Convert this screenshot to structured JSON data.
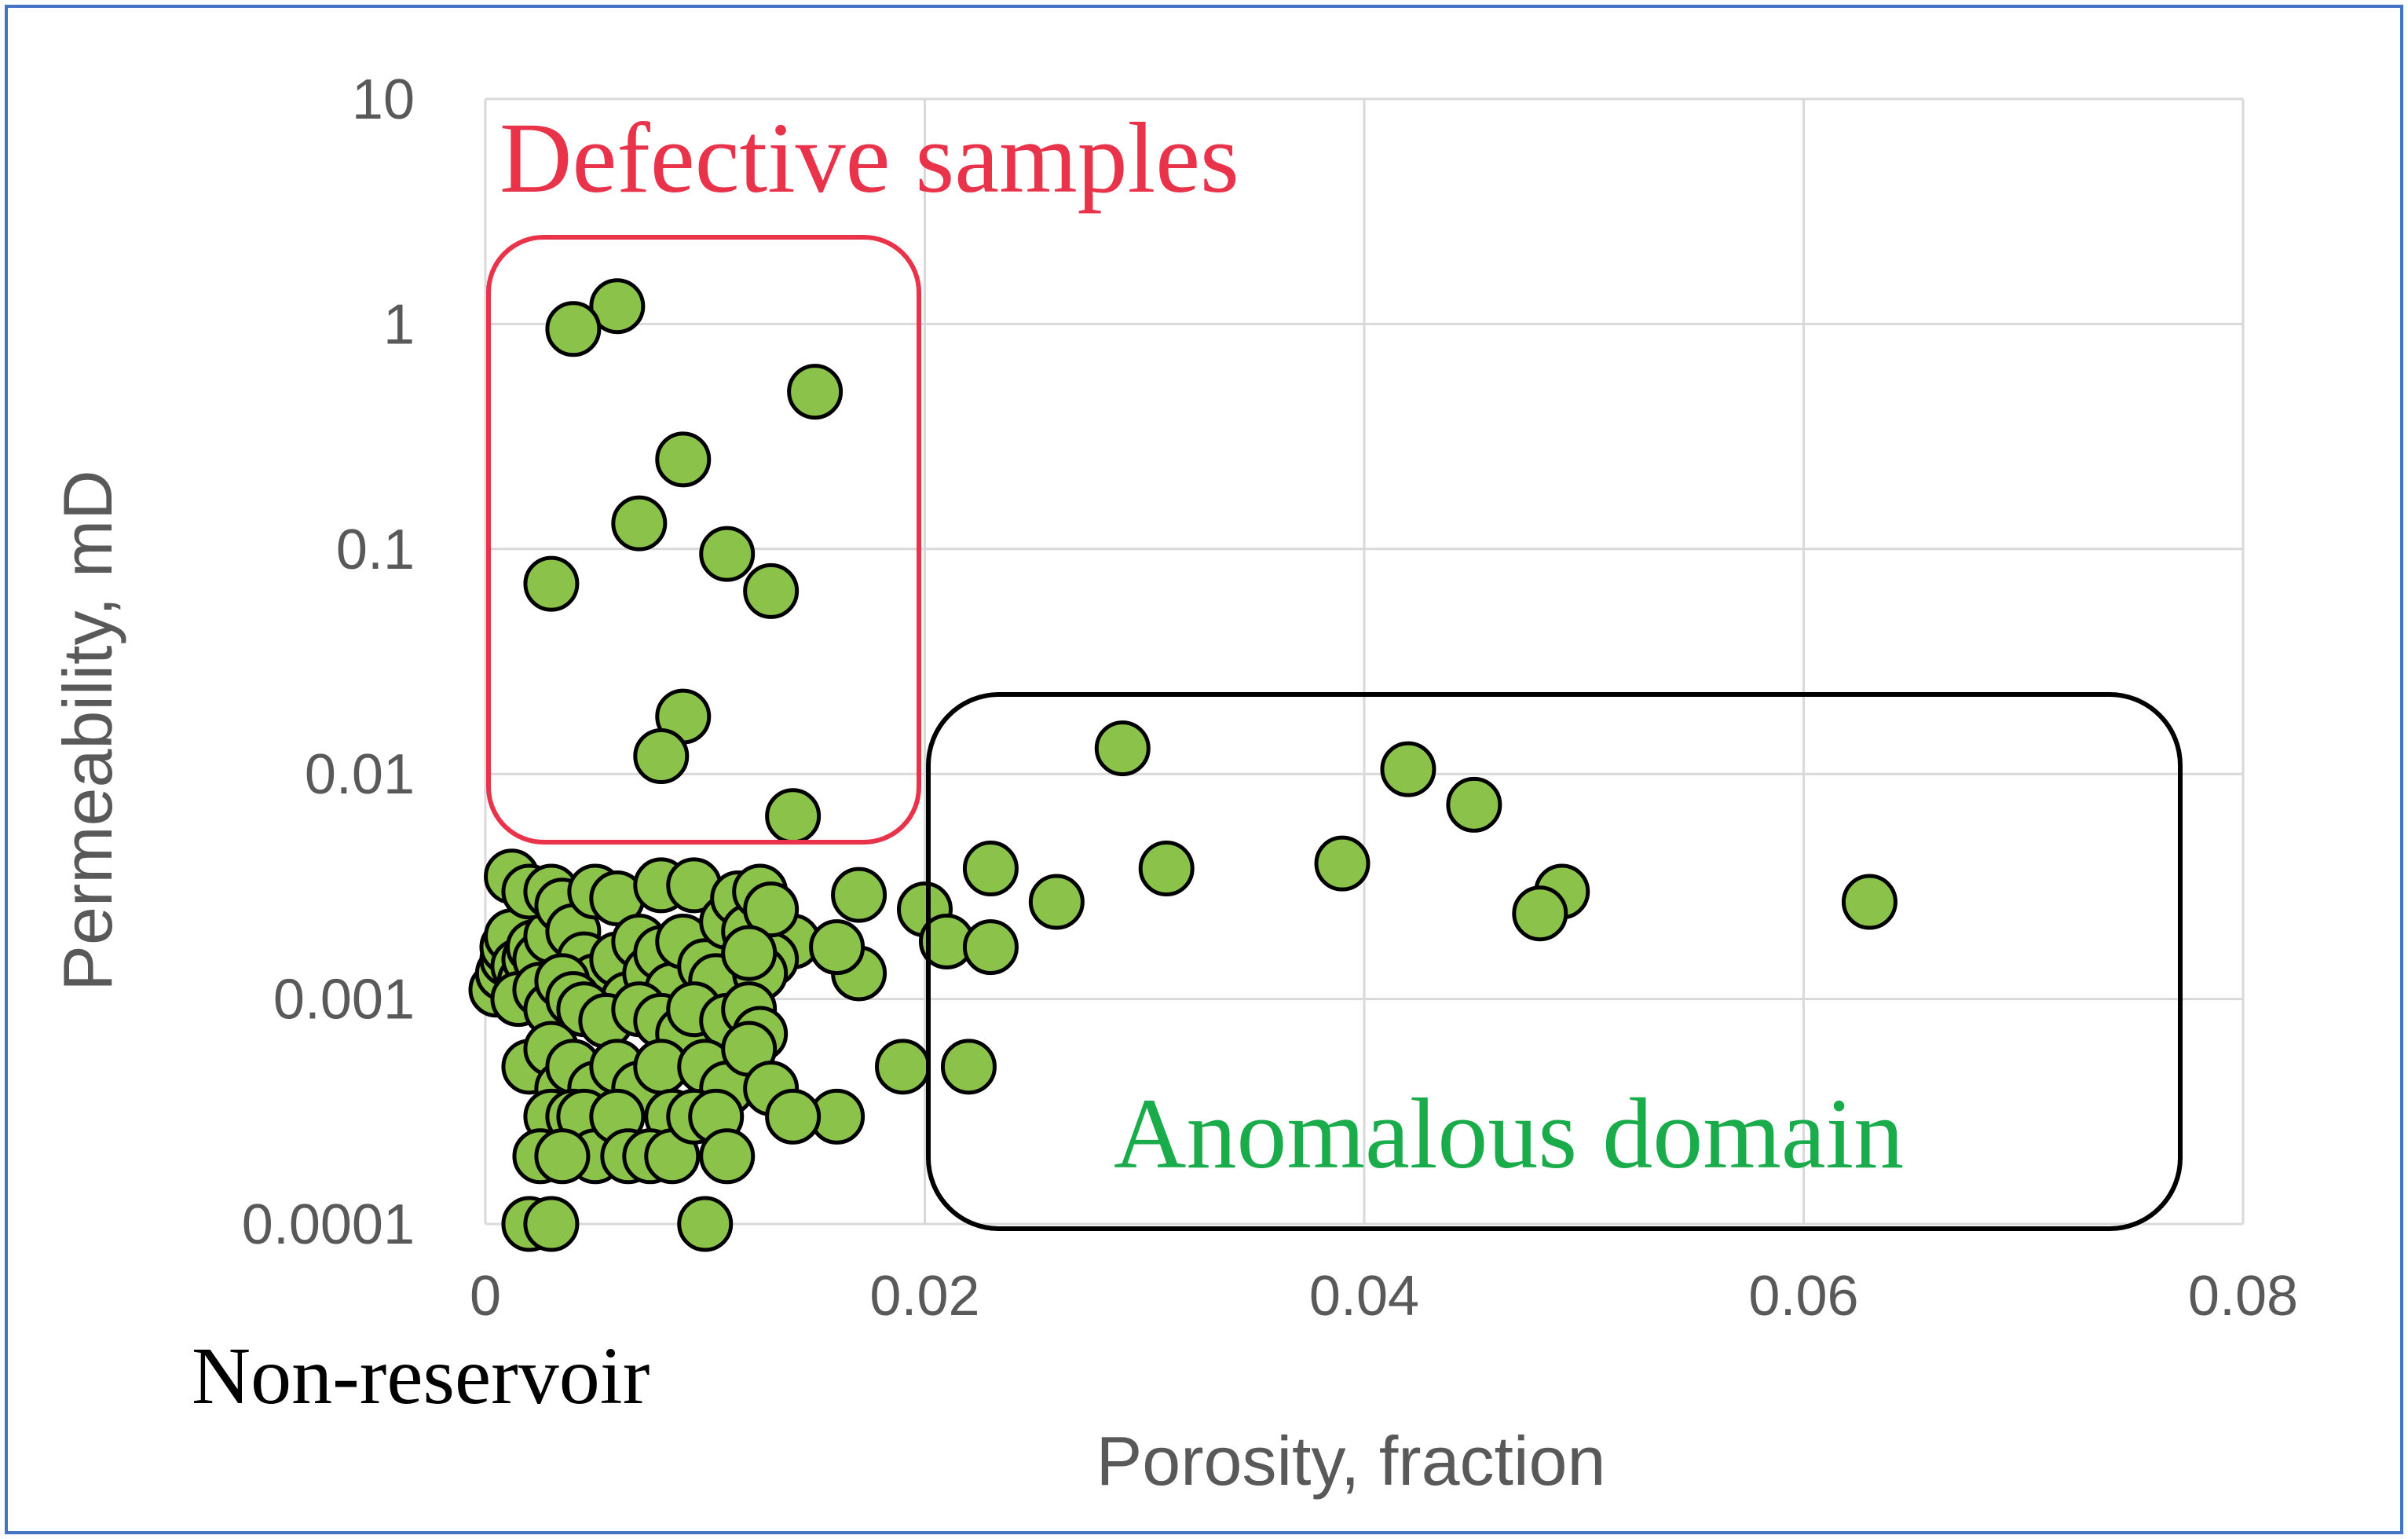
{
  "chart_data": {
    "type": "scatter",
    "xlabel": "Porosity, fraction",
    "ylabel": "Permeability, mD",
    "xlim": [
      0,
      0.08
    ],
    "ylim": [
      0.0001,
      10
    ],
    "yscale": "log",
    "x_ticks": [
      "0",
      "0.02",
      "0.04",
      "0.06",
      "0.08"
    ],
    "y_ticks": [
      "10",
      "1",
      "0.1",
      "0.01",
      "0.001",
      "0.0001"
    ],
    "grid": true,
    "marker_color": "#8bc34a",
    "annotations": {
      "defective": {
        "text": "Defective samples",
        "color": "#e8334a"
      },
      "anomalous": {
        "text": "Anomalous domain",
        "color": "#1aab4b"
      },
      "nonreservoir": {
        "text": "Non-reservoir",
        "color": "#000000"
      }
    },
    "points": [
      {
        "x": 0.006,
        "y": 1.2
      },
      {
        "x": 0.004,
        "y": 0.95
      },
      {
        "x": 0.015,
        "y": 0.5
      },
      {
        "x": 0.009,
        "y": 0.25
      },
      {
        "x": 0.007,
        "y": 0.13
      },
      {
        "x": 0.011,
        "y": 0.095
      },
      {
        "x": 0.003,
        "y": 0.07
      },
      {
        "x": 0.013,
        "y": 0.065
      },
      {
        "x": 0.009,
        "y": 0.018
      },
      {
        "x": 0.008,
        "y": 0.012
      },
      {
        "x": 0.014,
        "y": 0.0065
      },
      {
        "x": 0.029,
        "y": 0.013
      },
      {
        "x": 0.042,
        "y": 0.0105
      },
      {
        "x": 0.045,
        "y": 0.0073
      },
      {
        "x": 0.023,
        "y": 0.0038
      },
      {
        "x": 0.031,
        "y": 0.0038
      },
      {
        "x": 0.039,
        "y": 0.004
      },
      {
        "x": 0.049,
        "y": 0.003
      },
      {
        "x": 0.048,
        "y": 0.0024
      },
      {
        "x": 0.063,
        "y": 0.0027
      },
      {
        "x": 0.026,
        "y": 0.0027
      },
      {
        "x": 0.02,
        "y": 0.0025
      },
      {
        "x": 0.021,
        "y": 0.0018
      },
      {
        "x": 0.023,
        "y": 0.0017
      },
      {
        "x": 0.017,
        "y": 0.0029
      },
      {
        "x": 0.017,
        "y": 0.0013
      },
      {
        "x": 0.019,
        "y": 0.0005
      },
      {
        "x": 0.022,
        "y": 0.0005
      },
      {
        "x": 0.016,
        "y": 0.0003
      },
      {
        "x": 0.014,
        "y": 0.0018
      },
      {
        "x": 0.016,
        "y": 0.0017
      },
      {
        "x": 0.0005,
        "y": 0.0011
      },
      {
        "x": 0.0008,
        "y": 0.0013
      },
      {
        "x": 0.001,
        "y": 0.0015
      },
      {
        "x": 0.001,
        "y": 0.0017
      },
      {
        "x": 0.0012,
        "y": 0.0019
      },
      {
        "x": 0.0015,
        "y": 0.0014
      },
      {
        "x": 0.0018,
        "y": 0.0012
      },
      {
        "x": 0.002,
        "y": 0.0015
      },
      {
        "x": 0.0022,
        "y": 0.0017
      },
      {
        "x": 0.0015,
        "y": 0.001
      },
      {
        "x": 0.0025,
        "y": 0.0015
      },
      {
        "x": 0.003,
        "y": 0.0019
      },
      {
        "x": 0.0012,
        "y": 0.0035
      },
      {
        "x": 0.002,
        "y": 0.003
      },
      {
        "x": 0.003,
        "y": 0.003
      },
      {
        "x": 0.0035,
        "y": 0.0026
      },
      {
        "x": 0.004,
        "y": 0.002
      },
      {
        "x": 0.0045,
        "y": 0.0015
      },
      {
        "x": 0.005,
        "y": 0.0012
      },
      {
        "x": 0.005,
        "y": 0.003
      },
      {
        "x": 0.006,
        "y": 0.0028
      },
      {
        "x": 0.006,
        "y": 0.0015
      },
      {
        "x": 0.0065,
        "y": 0.001
      },
      {
        "x": 0.007,
        "y": 0.0018
      },
      {
        "x": 0.0075,
        "y": 0.0013
      },
      {
        "x": 0.008,
        "y": 0.0032
      },
      {
        "x": 0.008,
        "y": 0.0016
      },
      {
        "x": 0.0085,
        "y": 0.0011
      },
      {
        "x": 0.009,
        "y": 0.0018
      },
      {
        "x": 0.0095,
        "y": 0.0032
      },
      {
        "x": 0.01,
        "y": 0.0014
      },
      {
        "x": 0.0105,
        "y": 0.0012
      },
      {
        "x": 0.011,
        "y": 0.0022
      },
      {
        "x": 0.0115,
        "y": 0.0028
      },
      {
        "x": 0.012,
        "y": 0.002
      },
      {
        "x": 0.0125,
        "y": 0.003
      },
      {
        "x": 0.013,
        "y": 0.0015
      },
      {
        "x": 0.013,
        "y": 0.0025
      },
      {
        "x": 0.0125,
        "y": 0.0013
      },
      {
        "x": 0.012,
        "y": 0.0016
      },
      {
        "x": 0.0025,
        "y": 0.0011
      },
      {
        "x": 0.003,
        "y": 0.0009
      },
      {
        "x": 0.0035,
        "y": 0.0012
      },
      {
        "x": 0.004,
        "y": 0.001
      },
      {
        "x": 0.0045,
        "y": 0.0009
      },
      {
        "x": 0.0055,
        "y": 0.0008
      },
      {
        "x": 0.007,
        "y": 0.0009
      },
      {
        "x": 0.008,
        "y": 0.0008
      },
      {
        "x": 0.009,
        "y": 0.0007
      },
      {
        "x": 0.0095,
        "y": 0.0009
      },
      {
        "x": 0.011,
        "y": 0.0008
      },
      {
        "x": 0.012,
        "y": 0.0009
      },
      {
        "x": 0.0125,
        "y": 0.0007
      },
      {
        "x": 0.002,
        "y": 0.0005
      },
      {
        "x": 0.003,
        "y": 0.0006
      },
      {
        "x": 0.0035,
        "y": 0.0004
      },
      {
        "x": 0.004,
        "y": 0.0005
      },
      {
        "x": 0.005,
        "y": 0.0004
      },
      {
        "x": 0.006,
        "y": 0.0005
      },
      {
        "x": 0.007,
        "y": 0.0004
      },
      {
        "x": 0.008,
        "y": 0.0005
      },
      {
        "x": 0.0085,
        "y": 0.0003
      },
      {
        "x": 0.01,
        "y": 0.0005
      },
      {
        "x": 0.011,
        "y": 0.0004
      },
      {
        "x": 0.012,
        "y": 0.0006
      },
      {
        "x": 0.013,
        "y": 0.0004
      },
      {
        "x": 0.014,
        "y": 0.0003
      },
      {
        "x": 0.003,
        "y": 0.0003
      },
      {
        "x": 0.004,
        "y": 0.0003
      },
      {
        "x": 0.0045,
        "y": 0.0003
      },
      {
        "x": 0.005,
        "y": 0.0002
      },
      {
        "x": 0.006,
        "y": 0.0003
      },
      {
        "x": 0.0065,
        "y": 0.0002
      },
      {
        "x": 0.0075,
        "y": 0.0002
      },
      {
        "x": 0.0085,
        "y": 0.0002
      },
      {
        "x": 0.0095,
        "y": 0.0003
      },
      {
        "x": 0.0105,
        "y": 0.0003
      },
      {
        "x": 0.011,
        "y": 0.0002
      },
      {
        "x": 0.0025,
        "y": 0.0002
      },
      {
        "x": 0.0035,
        "y": 0.0002
      },
      {
        "x": 0.002,
        "y": 0.0001
      },
      {
        "x": 0.003,
        "y": 0.0001
      },
      {
        "x": 0.01,
        "y": 0.0001
      }
    ]
  }
}
